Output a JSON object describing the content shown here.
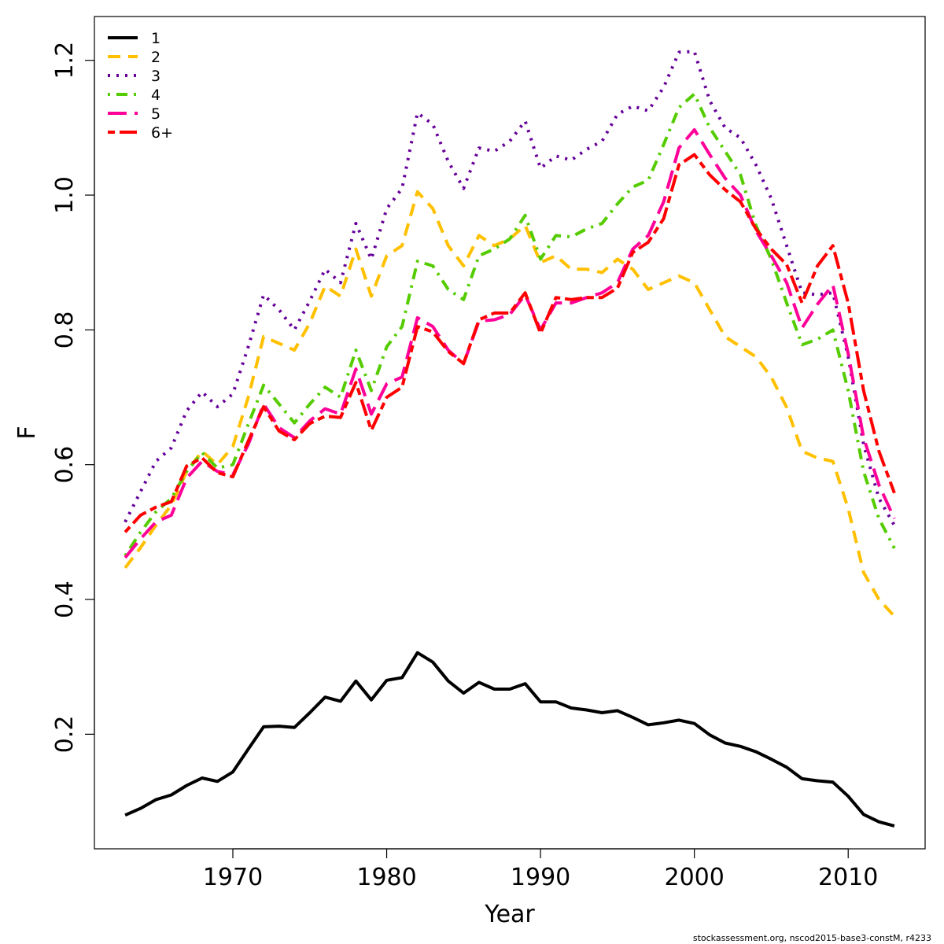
{
  "chart_data": {
    "type": "line",
    "xlabel": "Year",
    "ylabel": "F",
    "xlim": [
      1961,
      2015
    ],
    "ylim": [
      0.03,
      1.265
    ],
    "x_ticks": [
      1970,
      1980,
      1990,
      2000,
      2010
    ],
    "x_tick_labels": [
      "1970",
      "1980",
      "1990",
      "2000",
      "2010"
    ],
    "y_ticks": [
      0.2,
      0.4,
      0.6,
      0.8,
      1.0,
      1.2
    ],
    "y_tick_labels": [
      "0.2",
      "0.4",
      "0.6",
      "0.8",
      "1.0",
      "1.2"
    ],
    "grid": false,
    "legend_position": "top-left",
    "x": [
      1963,
      1964,
      1965,
      1966,
      1967,
      1968,
      1969,
      1970,
      1971,
      1972,
      1973,
      1974,
      1975,
      1976,
      1977,
      1978,
      1979,
      1980,
      1981,
      1982,
      1983,
      1984,
      1985,
      1986,
      1987,
      1988,
      1989,
      1990,
      1991,
      1992,
      1993,
      1994,
      1995,
      1996,
      1997,
      1998,
      1999,
      2000,
      2001,
      2002,
      2003,
      2004,
      2005,
      2006,
      2007,
      2008,
      2009,
      2010,
      2011,
      2012,
      2013
    ],
    "series": [
      {
        "name": "1",
        "color": "#000000",
        "dash": "solid",
        "values": [
          0.08,
          0.09,
          0.103,
          0.11,
          0.124,
          0.135,
          0.13,
          0.144,
          0.178,
          0.211,
          0.212,
          0.21,
          0.232,
          0.255,
          0.249,
          0.279,
          0.251,
          0.28,
          0.284,
          0.321,
          0.307,
          0.279,
          0.261,
          0.277,
          0.267,
          0.267,
          0.275,
          0.248,
          0.248,
          0.239,
          0.236,
          0.232,
          0.235,
          0.225,
          0.214,
          0.217,
          0.221,
          0.216,
          0.199,
          0.187,
          0.182,
          0.174,
          0.163,
          0.151,
          0.134,
          0.131,
          0.129,
          0.108,
          0.081,
          0.07,
          0.064
        ]
      },
      {
        "name": "2",
        "color": "#ffc000",
        "dash": "dashed",
        "values": [
          0.447,
          0.477,
          0.51,
          0.54,
          0.59,
          0.62,
          0.6,
          0.627,
          0.7,
          0.79,
          0.78,
          0.77,
          0.81,
          0.865,
          0.85,
          0.92,
          0.85,
          0.91,
          0.925,
          1.005,
          0.98,
          0.925,
          0.895,
          0.94,
          0.925,
          0.935,
          0.955,
          0.9,
          0.91,
          0.89,
          0.89,
          0.885,
          0.905,
          0.89,
          0.86,
          0.87,
          0.88,
          0.87,
          0.83,
          0.79,
          0.775,
          0.76,
          0.73,
          0.685,
          0.62,
          0.61,
          0.605,
          0.535,
          0.44,
          0.4,
          0.375
        ]
      },
      {
        "name": "3",
        "color": "#660099",
        "dash": "dotted",
        "values": [
          0.515,
          0.56,
          0.605,
          0.625,
          0.68,
          0.708,
          0.686,
          0.705,
          0.775,
          0.852,
          0.83,
          0.8,
          0.843,
          0.89,
          0.87,
          0.958,
          0.905,
          0.98,
          1.01,
          1.122,
          1.105,
          1.05,
          1.01,
          1.07,
          1.065,
          1.08,
          1.11,
          1.04,
          1.058,
          1.052,
          1.068,
          1.08,
          1.12,
          1.132,
          1.125,
          1.16,
          1.212,
          1.213,
          1.14,
          1.1,
          1.085,
          1.045,
          0.995,
          0.925,
          0.855,
          0.852,
          0.855,
          0.76,
          0.63,
          0.55,
          0.51
        ]
      },
      {
        "name": "4",
        "color": "#55cc00",
        "dash": "dotdash",
        "values": [
          0.465,
          0.5,
          0.53,
          0.55,
          0.59,
          0.618,
          0.595,
          0.6,
          0.66,
          0.718,
          0.69,
          0.662,
          0.69,
          0.715,
          0.7,
          0.77,
          0.71,
          0.775,
          0.805,
          0.902,
          0.895,
          0.86,
          0.845,
          0.91,
          0.92,
          0.935,
          0.97,
          0.905,
          0.94,
          0.938,
          0.95,
          0.958,
          0.987,
          1.012,
          1.022,
          1.075,
          1.13,
          1.15,
          1.1,
          1.065,
          1.03,
          0.955,
          0.905,
          0.84,
          0.778,
          0.786,
          0.8,
          0.71,
          0.59,
          0.52,
          0.476
        ]
      },
      {
        "name": "5",
        "color": "#ff0099",
        "dash": "longdash",
        "values": [
          0.462,
          0.49,
          0.515,
          0.525,
          0.58,
          0.605,
          0.59,
          0.585,
          0.63,
          0.69,
          0.655,
          0.64,
          0.665,
          0.683,
          0.675,
          0.742,
          0.675,
          0.72,
          0.73,
          0.818,
          0.805,
          0.77,
          0.75,
          0.813,
          0.815,
          0.823,
          0.852,
          0.8,
          0.84,
          0.84,
          0.848,
          0.855,
          0.87,
          0.92,
          0.94,
          0.99,
          1.07,
          1.097,
          1.06,
          1.025,
          1.0,
          0.947,
          0.91,
          0.87,
          0.803,
          0.838,
          0.867,
          0.765,
          0.64,
          0.57,
          0.52
        ]
      },
      {
        "name": "6+",
        "color": "#ff0000",
        "dash": "twodash",
        "values": [
          0.5,
          0.525,
          0.537,
          0.545,
          0.598,
          0.61,
          0.588,
          0.582,
          0.635,
          0.686,
          0.65,
          0.637,
          0.661,
          0.672,
          0.67,
          0.722,
          0.651,
          0.7,
          0.715,
          0.805,
          0.797,
          0.768,
          0.75,
          0.815,
          0.825,
          0.825,
          0.855,
          0.795,
          0.848,
          0.845,
          0.848,
          0.848,
          0.862,
          0.915,
          0.93,
          0.965,
          1.045,
          1.06,
          1.03,
          1.008,
          0.99,
          0.95,
          0.92,
          0.897,
          0.84,
          0.895,
          0.925,
          0.84,
          0.71,
          0.62,
          0.558
        ]
      }
    ],
    "footer": "stockassessment.org, nscod2015-base3-constM, r4233"
  }
}
